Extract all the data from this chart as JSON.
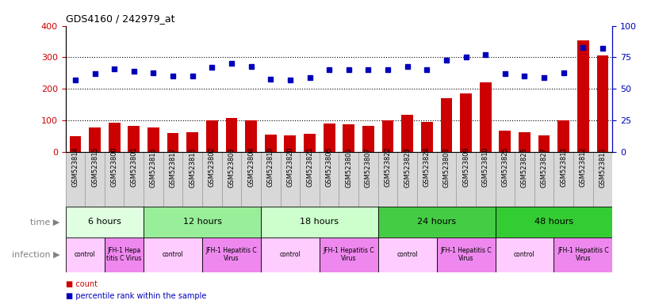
{
  "title": "GDS4160 / 242979_at",
  "samples": [
    "GSM523814",
    "GSM523815",
    "GSM523800",
    "GSM523801",
    "GSM523816",
    "GSM523817",
    "GSM523818",
    "GSM523802",
    "GSM523803",
    "GSM523804",
    "GSM523819",
    "GSM523820",
    "GSM523821",
    "GSM523805",
    "GSM523806",
    "GSM523807",
    "GSM523822",
    "GSM523823",
    "GSM523824",
    "GSM523808",
    "GSM523809",
    "GSM523810",
    "GSM523825",
    "GSM523826",
    "GSM523827",
    "GSM523811",
    "GSM523812",
    "GSM523813"
  ],
  "counts": [
    50,
    78,
    93,
    82,
    78,
    60,
    62,
    100,
    108,
    100,
    55,
    52,
    57,
    90,
    88,
    82,
    100,
    118,
    95,
    170,
    185,
    220,
    68,
    62,
    52,
    100,
    355,
    305
  ],
  "percentiles": [
    57,
    62,
    66,
    64,
    63,
    60,
    60,
    67,
    70,
    68,
    58,
    57,
    59,
    65,
    65,
    65,
    65,
    68,
    65,
    73,
    75,
    77,
    62,
    60,
    59,
    63,
    83,
    82
  ],
  "bar_color": "#cc0000",
  "dot_color": "#0000bb",
  "left_ylim": [
    0,
    400
  ],
  "right_ylim": [
    0,
    100
  ],
  "left_yticks": [
    0,
    100,
    200,
    300,
    400
  ],
  "right_yticks": [
    0,
    25,
    50,
    75,
    100
  ],
  "grid_values": [
    100,
    200,
    300
  ],
  "time_groups": [
    {
      "label": "6 hours",
      "start": 0,
      "end": 4,
      "color": "#e0ffe0"
    },
    {
      "label": "12 hours",
      "start": 4,
      "end": 10,
      "color": "#99ee99"
    },
    {
      "label": "18 hours",
      "start": 10,
      "end": 16,
      "color": "#ccffcc"
    },
    {
      "label": "24 hours",
      "start": 16,
      "end": 22,
      "color": "#44cc44"
    },
    {
      "label": "48 hours",
      "start": 22,
      "end": 28,
      "color": "#33cc33"
    }
  ],
  "infection_groups": [
    {
      "label": "control",
      "start": 0,
      "end": 2,
      "color": "#ffccff"
    },
    {
      "label": "JFH-1 Hepa\ntitis C Virus",
      "start": 2,
      "end": 4,
      "color": "#ee88ee"
    },
    {
      "label": "control",
      "start": 4,
      "end": 7,
      "color": "#ffccff"
    },
    {
      "label": "JFH-1 Hepatitis C\nVirus",
      "start": 7,
      "end": 10,
      "color": "#ee88ee"
    },
    {
      "label": "control",
      "start": 10,
      "end": 13,
      "color": "#ffccff"
    },
    {
      "label": "JFH-1 Hepatitis C\nVirus",
      "start": 13,
      "end": 16,
      "color": "#ee88ee"
    },
    {
      "label": "control",
      "start": 16,
      "end": 19,
      "color": "#ffccff"
    },
    {
      "label": "JFH-1 Hepatitis C\nVirus",
      "start": 19,
      "end": 22,
      "color": "#ee88ee"
    },
    {
      "label": "control",
      "start": 22,
      "end": 25,
      "color": "#ffccff"
    },
    {
      "label": "JFH-1 Hepatitis C\nVirus",
      "start": 25,
      "end": 28,
      "color": "#ee88ee"
    }
  ],
  "time_label": "time",
  "infection_label": "infection",
  "legend_count_label": "count",
  "legend_percentile_label": "percentile rank within the sample",
  "legend_count_color": "#cc0000",
  "legend_dot_color": "#0000bb",
  "bg_color": "#ffffff",
  "plot_bg": "#ffffff",
  "xlabel_bg": "#d8d8d8"
}
